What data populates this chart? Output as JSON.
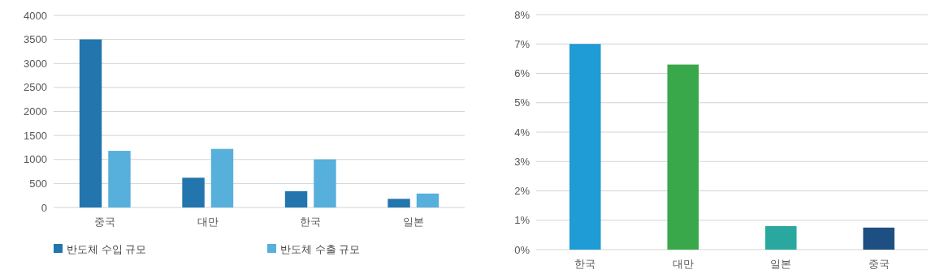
{
  "chart_data": [
    {
      "type": "bar",
      "categories": [
        "중국",
        "대만",
        "한국",
        "일본"
      ],
      "series": [
        {
          "name": "반도체 수입 규모",
          "color": "#2275ad",
          "values": [
            3500,
            620,
            340,
            180
          ]
        },
        {
          "name": "반도체 수출 규모",
          "color": "#57afdb",
          "values": [
            1180,
            1220,
            1000,
            290
          ]
        }
      ],
      "ylim": [
        0,
        4000
      ],
      "yticks": [
        0,
        500,
        1000,
        1500,
        2000,
        2500,
        3000,
        3500,
        4000
      ],
      "grid": "y",
      "legend": "bottom"
    },
    {
      "type": "bar",
      "categories": [
        "한국",
        "대만",
        "일본",
        "중국"
      ],
      "values": [
        7,
        6.3,
        0.8,
        0.75
      ],
      "colors": [
        "#1f9bd5",
        "#39a84a",
        "#2aa8a0",
        "#1d4f82"
      ],
      "ylim": [
        0,
        8
      ],
      "yticks": [
        {
          "value": 0,
          "label": "0%"
        },
        {
          "value": 1,
          "label": "1%"
        },
        {
          "value": 2,
          "label": "2%"
        },
        {
          "value": 3,
          "label": "3%"
        },
        {
          "value": 4,
          "label": "4%"
        },
        {
          "value": 5,
          "label": "5%"
        },
        {
          "value": 6,
          "label": "6%"
        },
        {
          "value": 7,
          "label": "7%"
        },
        {
          "value": 8,
          "label": "8%"
        }
      ],
      "grid": "y"
    }
  ]
}
